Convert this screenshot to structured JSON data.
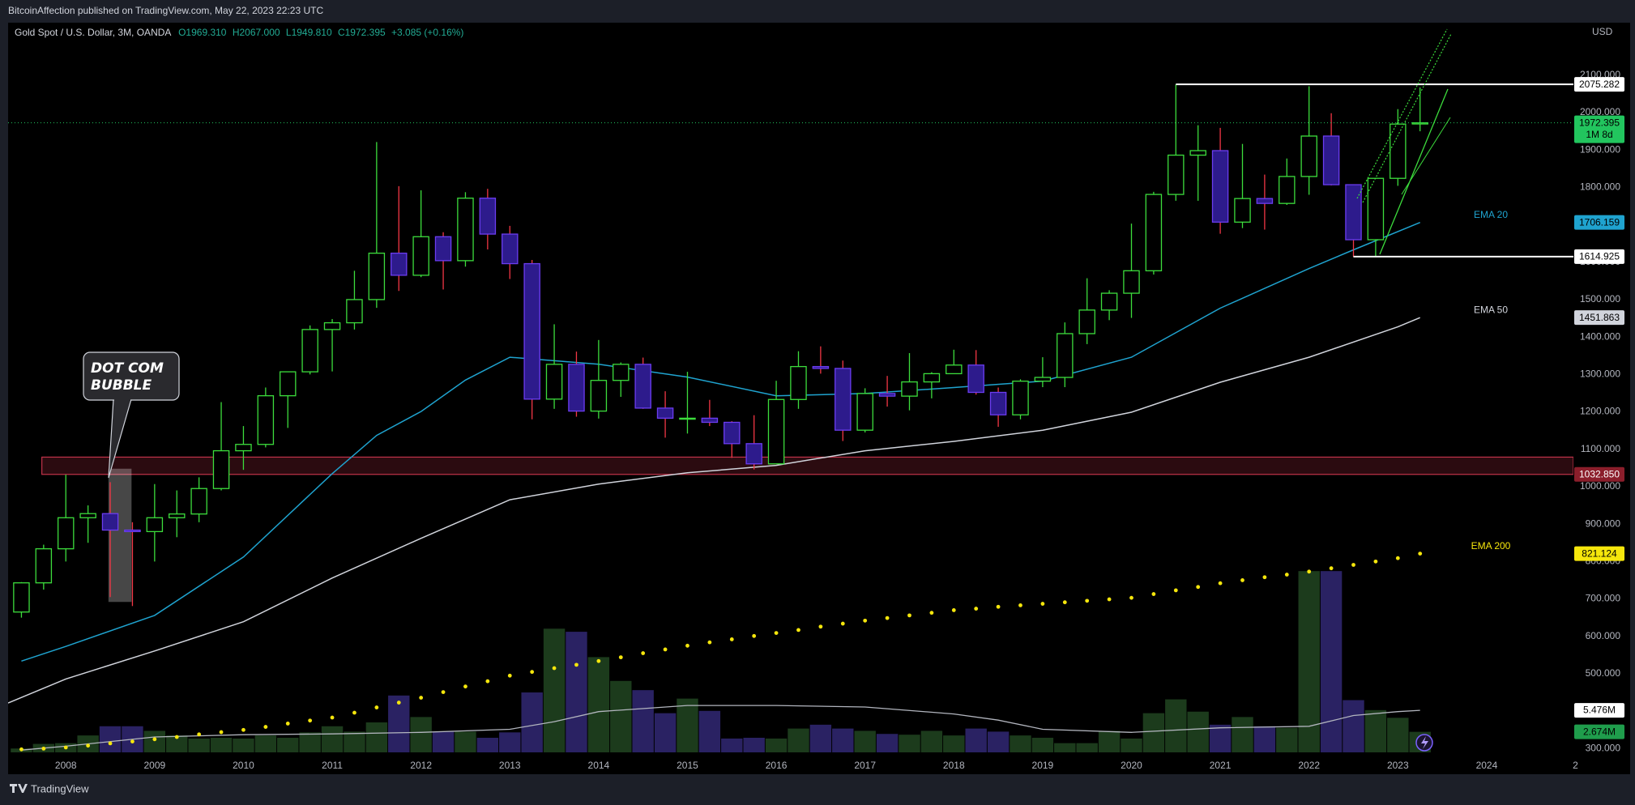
{
  "header": {
    "published": "BitcoinAffection published on TradingView.com, May 22, 2023 22:23 UTC"
  },
  "footer": {
    "brand": "TradingView"
  },
  "chart_data": {
    "type": "candlestick",
    "symbol": "Gold Spot / U.S. Dollar, 3M, OANDA",
    "ohlc_legend": [
      "O1969.310",
      "H2067.000",
      "L1949.810",
      "C1972.395",
      "+3.085 (+0.16%)"
    ],
    "currency": "USD",
    "x": [
      2007.5,
      2007.75,
      2008,
      2008.25,
      2008.5,
      2008.75,
      2009,
      2009.25,
      2009.5,
      2009.75,
      2010,
      2010.25,
      2010.5,
      2010.75,
      2011,
      2011.25,
      2011.5,
      2011.75,
      2012,
      2012.25,
      2012.5,
      2012.75,
      2013,
      2013.25,
      2013.5,
      2013.75,
      2014,
      2014.25,
      2014.5,
      2014.75,
      2015,
      2015.25,
      2015.5,
      2015.75,
      2016,
      2016.25,
      2016.5,
      2016.75,
      2017,
      2017.25,
      2017.5,
      2017.75,
      2018,
      2018.25,
      2018.5,
      2018.75,
      2019,
      2019.25,
      2019.5,
      2019.75,
      2020,
      2020.25,
      2020.5,
      2020.75,
      2021,
      2021.25,
      2021.5,
      2021.75,
      2022,
      2022.25,
      2022.5,
      2022.75,
      2023,
      2023.25
    ],
    "open": [
      665,
      743,
      834,
      917,
      928,
      884,
      880,
      917,
      927,
      995,
      1096,
      1113,
      1243,
      1307,
      1420,
      1438,
      1500,
      1624,
      1565,
      1668,
      1604,
      1771,
      1675,
      1596,
      1234,
      1327,
      1202,
      1284,
      1327,
      1210,
      1183,
      1183,
      1172,
      1115,
      1061,
      1233,
      1321,
      1316,
      1151,
      1249,
      1242,
      1280,
      1302,
      1325,
      1252,
      1192,
      1282,
      1292,
      1409,
      1472,
      1517,
      1577,
      1781,
      1886,
      1898,
      1707,
      1770,
      1757,
      1829,
      1937,
      1807,
      1660,
      1824,
      1969.31
    ],
    "high": [
      745,
      845,
      1032,
      950,
      1012,
      905,
      1007,
      990,
      1025,
      1226,
      1162,
      1265,
      1307,
      1431,
      1448,
      1577,
      1921,
      1803,
      1792,
      1680,
      1787,
      1796,
      1697,
      1606,
      1434,
      1361,
      1392,
      1332,
      1345,
      1255,
      1307,
      1232,
      1175,
      1191,
      1283,
      1362,
      1375,
      1337,
      1263,
      1296,
      1357,
      1306,
      1366,
      1365,
      1265,
      1287,
      1346,
      1439,
      1557,
      1525,
      1703,
      1788,
      2075,
      1966,
      1959,
      1916,
      1834,
      1877,
      2070,
      1998,
      1807,
      1824,
      2009,
      2067
    ],
    "low": [
      650,
      725,
      800,
      850,
      705,
      681,
      800,
      865,
      905,
      990,
      1045,
      1105,
      1157,
      1300,
      1308,
      1420,
      1478,
      1523,
      1560,
      1527,
      1588,
      1634,
      1555,
      1180,
      1208,
      1187,
      1182,
      1240,
      1208,
      1131,
      1142,
      1162,
      1077,
      1046,
      1061,
      1208,
      1302,
      1122,
      1145,
      1214,
      1204,
      1236,
      1302,
      1246,
      1160,
      1180,
      1266,
      1266,
      1381,
      1445,
      1451,
      1567,
      1764,
      1764,
      1676,
      1691,
      1687,
      1753,
      1780,
      1805,
      1614,
      1616,
      1804,
      1949.81
    ],
    "close": [
      743,
      834,
      917,
      928,
      884,
      880,
      917,
      927,
      995,
      1096,
      1113,
      1243,
      1307,
      1420,
      1438,
      1500,
      1624,
      1565,
      1668,
      1604,
      1771,
      1675,
      1596,
      1234,
      1327,
      1202,
      1284,
      1327,
      1210,
      1183,
      1183,
      1172,
      1115,
      1061,
      1233,
      1321,
      1316,
      1151,
      1249,
      1242,
      1280,
      1302,
      1325,
      1252,
      1192,
      1282,
      1292,
      1409,
      1472,
      1517,
      1577,
      1781,
      1886,
      1898,
      1707,
      1770,
      1757,
      1829,
      1937,
      1807,
      1660,
      1824,
      1969,
      1972.395
    ],
    "up_color": "#3cdc3c",
    "down_color": "#6b3cf0",
    "down_fill": "#2d1b8c",
    "down_wick_color": "#f23645",
    "xlim": [
      2007.35,
      2025.05
    ],
    "xticks": [
      2008,
      2009,
      2010,
      2011,
      2012,
      2013,
      2014,
      2015,
      2016,
      2017,
      2018,
      2019,
      2020,
      2021,
      2022,
      2023,
      2024,
      {
        "value": 2025,
        "label": "2"
      }
    ],
    "ylim": [
      277,
      2240
    ],
    "yticks": [
      {
        "value": 300,
        "label": "300.000"
      },
      {
        "value": 400,
        "label": "400.000"
      },
      {
        "value": 500,
        "label": "500.000"
      },
      {
        "value": 600,
        "label": "600.000"
      },
      {
        "value": 700,
        "label": "700.000"
      },
      {
        "value": 800,
        "label": "800.000"
      },
      {
        "value": 900,
        "label": "900.000"
      },
      {
        "value": 1000,
        "label": "1000.000"
      },
      {
        "value": 1100,
        "label": "1100.000"
      },
      {
        "value": 1200,
        "label": "1200.000"
      },
      {
        "value": 1300,
        "label": "1300.000"
      },
      {
        "value": 1400,
        "label": "1400.000"
      },
      {
        "value": 1500,
        "label": "1500.000"
      },
      {
        "value": 1600,
        "label": "1600.000"
      },
      {
        "value": 1700,
        "label": "1700.000"
      },
      {
        "value": 1800,
        "label": "1800.000"
      },
      {
        "value": 1900,
        "label": "1900.000"
      },
      {
        "value": 2000,
        "label": "2000.000"
      },
      {
        "value": 2100,
        "label": "2100.000"
      }
    ],
    "volume": {
      "values": [
        0.5,
        1.1,
        1.2,
        2.2,
        3.4,
        3.4,
        2.8,
        2.2,
        1.8,
        1.9,
        1.8,
        2.2,
        1.9,
        2.6,
        3.4,
        2.7,
        3.9,
        7.4,
        4.6,
        2.7,
        2.7,
        1.9,
        2.6,
        7.8,
        16.1,
        15.7,
        12.4,
        9.3,
        8.1,
        5.1,
        7.0,
        5.4,
        1.8,
        1.9,
        1.8,
        3.1,
        3.6,
        3.1,
        2.8,
        2.4,
        2.3,
        2.8,
        2.2,
        3.1,
        2.7,
        2.2,
        1.9,
        1.2,
        1.2,
        2.8,
        1.8,
        5.1,
        6.9,
        5.3,
        3.6,
        4.6,
        3.4,
        3.2,
        23.6,
        23.6,
        6.8,
        5.5,
        4.5,
        2.674
      ],
      "last_label": "2.674M",
      "ylim": [
        0,
        95
      ],
      "up_color": "#1c3b1c",
      "down_color": "#2a2263",
      "ma": {
        "x": [
          2007.5,
          2008,
          2009,
          2010,
          2011,
          2012,
          2013,
          2013.5,
          2014,
          2015,
          2016,
          2017,
          2018,
          2018.5,
          2019,
          2020,
          2021,
          2022,
          2022.5,
          2023,
          2023.25
        ],
        "values": [
          0.3,
          0.8,
          2.0,
          2.3,
          2.4,
          2.6,
          3.0,
          4.0,
          5.3,
          6.1,
          6.1,
          5.9,
          5.0,
          4.2,
          3.0,
          2.6,
          3.2,
          3.4,
          4.8,
          5.3,
          5.476
        ],
        "last_label": "5.476M",
        "color": "#b2b5be"
      }
    },
    "series": [
      {
        "name": "EMA 20",
        "color": "#1fa3cf",
        "x": [
          2007.5,
          2008,
          2009,
          2010,
          2011,
          2011.5,
          2012,
          2012.5,
          2013,
          2014,
          2015,
          2016,
          2017,
          2018,
          2019,
          2020,
          2021,
          2022,
          2022.5,
          2023.25
        ],
        "values": [
          534,
          573,
          656,
          812,
          1035,
          1137,
          1201,
          1285,
          1346,
          1327,
          1293,
          1243,
          1249,
          1265,
          1282,
          1346,
          1477,
          1583,
          1633,
          1706.159
        ]
      },
      {
        "name": "EMA 50",
        "color": "#d1d4dc",
        "x": [
          2007.35,
          2008,
          2009,
          2010,
          2011,
          2012,
          2013,
          2014,
          2015,
          2016,
          2017,
          2018,
          2019,
          2020,
          2021,
          2022,
          2023,
          2023.25
        ],
        "values": [
          422,
          486,
          561,
          639,
          756,
          862,
          965,
          1007,
          1037,
          1057,
          1096,
          1121,
          1151,
          1199,
          1279,
          1346,
          1427,
          1451.863
        ]
      },
      {
        "name": "EMA 200",
        "color": "#f5e60c",
        "style": "dots",
        "x": [
          2007.5,
          2007.75,
          2008,
          2008.25,
          2008.5,
          2008.75,
          2009,
          2009.25,
          2009.5,
          2009.75,
          2010,
          2010.25,
          2010.5,
          2010.75,
          2011,
          2011.25,
          2011.5,
          2011.75,
          2012,
          2012.25,
          2012.5,
          2012.75,
          2013,
          2013.25,
          2013.5,
          2013.75,
          2014,
          2014.25,
          2014.5,
          2014.75,
          2015,
          2015.25,
          2015.5,
          2015.75,
          2016,
          2016.25,
          2016.5,
          2016.75,
          2017,
          2017.25,
          2017.5,
          2017.75,
          2018,
          2018.25,
          2018.5,
          2018.75,
          2019,
          2019.25,
          2019.5,
          2019.75,
          2020,
          2020.25,
          2020.5,
          2020.75,
          2021,
          2021.25,
          2021.5,
          2021.75,
          2022,
          2022.25,
          2022.5,
          2022.75,
          2023,
          2023.25
        ],
        "values": [
          298,
          300,
          303,
          308,
          314,
          319,
          325,
          331,
          338,
          344,
          350,
          358,
          367,
          375,
          383,
          396,
          410,
          423,
          436,
          451,
          466,
          480,
          495,
          505,
          515,
          524,
          534,
          544,
          555,
          565,
          575,
          584,
          592,
          601,
          609,
          617,
          626,
          634,
          642,
          649,
          656,
          663,
          670,
          674,
          679,
          683,
          687,
          691,
          695,
          699,
          703,
          713,
          723,
          732,
          742,
          750,
          758,
          765,
          773,
          782,
          791,
          800,
          809,
          821.124
        ]
      }
    ],
    "levels": [
      {
        "value": 2075.282,
        "from": 2020.5
      },
      {
        "value": 1614.925,
        "from": 2022.5
      }
    ],
    "last_price": {
      "value": 1972.395,
      "countdown": "1M 8d",
      "color": "#22c55e"
    },
    "zone": {
      "low": {
        "value": 1032.85,
        "label": "1032.850"
      },
      "high": 1079,
      "from": 2007.73,
      "color": "#c2334a"
    },
    "highlight": {
      "x": [
        2008.48,
        2008.74
      ],
      "low": 692,
      "high": 1048
    },
    "annotation": {
      "lines": [
        "DOT COM",
        "BUBBLE"
      ]
    }
  }
}
